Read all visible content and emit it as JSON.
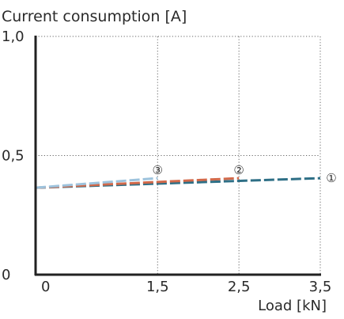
{
  "chart_data": {
    "type": "line",
    "title": "Current consumption [A]",
    "xlabel": "Load [kN]",
    "ylabel": "",
    "xlim": [
      0,
      3.5
    ],
    "ylim": [
      0,
      1.0
    ],
    "grid": "dotted",
    "x_ticks": [
      0,
      1.5,
      2.5,
      3.5
    ],
    "x_tick_labels": [
      "0",
      "1,5",
      "2,5",
      "3,5"
    ],
    "y_ticks": [
      0,
      0.5,
      1.0
    ],
    "y_tick_labels": [
      "0",
      "0,5",
      "1,0"
    ],
    "series": [
      {
        "marker": "①",
        "color": "#2e6f86",
        "x": [
          0,
          3.5
        ],
        "values": [
          0.365,
          0.405
        ]
      },
      {
        "marker": "②",
        "color": "#d2694a",
        "x": [
          0,
          2.5
        ],
        "values": [
          0.365,
          0.405
        ]
      },
      {
        "marker": "③",
        "color": "#9dc3dd",
        "x": [
          0,
          1.5
        ],
        "values": [
          0.365,
          0.405
        ]
      }
    ]
  }
}
